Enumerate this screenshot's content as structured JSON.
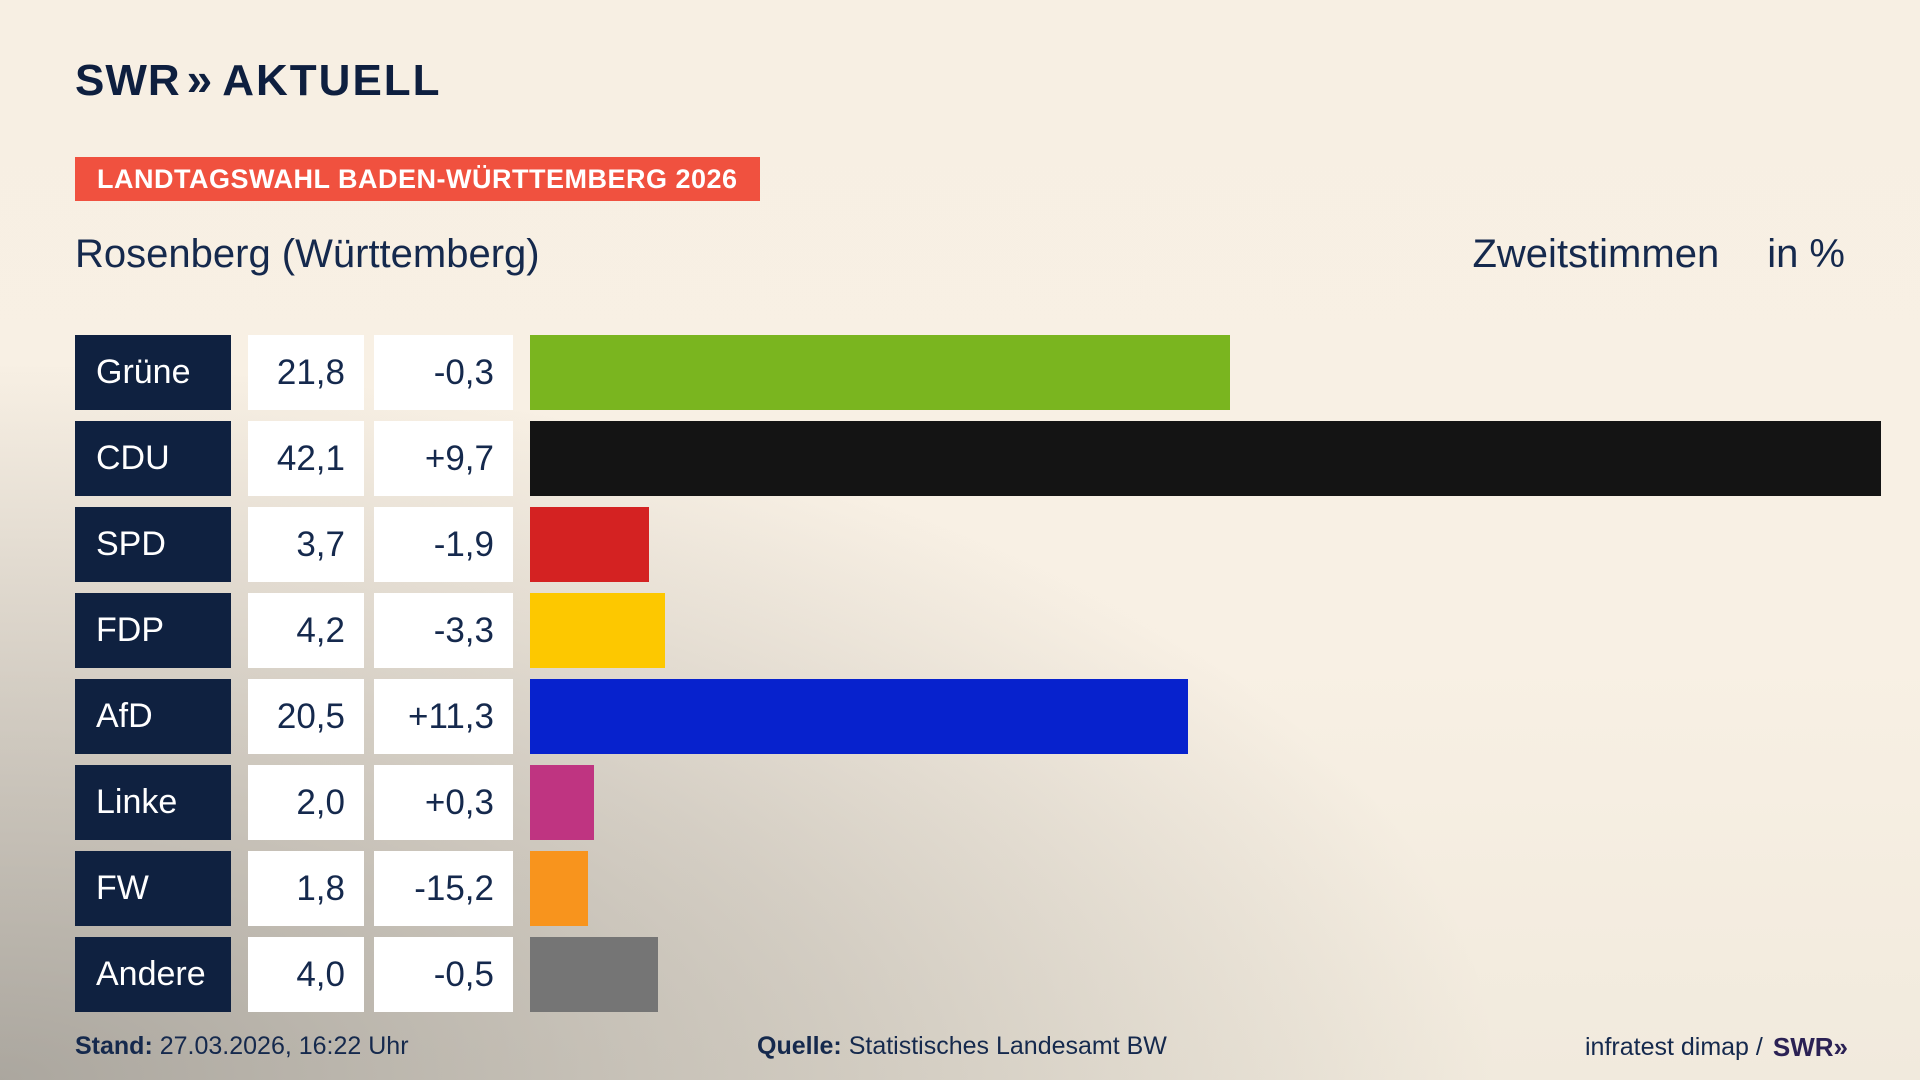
{
  "brand": {
    "swr": "SWR",
    "chevrons": "»",
    "aktuell": "AKTUELL",
    "color": "#0e1f3f"
  },
  "banner": {
    "text": "LANDTAGSWAHL BADEN-WÜRTTEMBERG 2026",
    "bg_color": "#f0513f",
    "text_color": "#ffffff"
  },
  "header": {
    "title": "Rosenberg (Württemberg)",
    "vote_type": "Zweitstimmen",
    "unit": "in %"
  },
  "chart_data": {
    "type": "bar",
    "orientation": "horizontal",
    "title": "Rosenberg (Württemberg)",
    "value_label": "Zweitstimmen",
    "unit": "in %",
    "xlim": [
      0,
      42.1
    ],
    "max_value": 42.1,
    "grid": false,
    "legend": false,
    "categories": [
      "Grüne",
      "CDU",
      "SPD",
      "FDP",
      "AfD",
      "Linke",
      "FW",
      "Andere"
    ],
    "parties": [
      {
        "name": "Grüne",
        "value": 21.8,
        "value_label": "21,8",
        "change_label": "-0,3",
        "color": "#7ab51f"
      },
      {
        "name": "CDU",
        "value": 42.1,
        "value_label": "42,1",
        "change_label": "+9,7",
        "color": "#141414"
      },
      {
        "name": "SPD",
        "value": 3.7,
        "value_label": "3,7",
        "change_label": "-1,9",
        "color": "#d42222"
      },
      {
        "name": "FDP",
        "value": 4.2,
        "value_label": "4,2",
        "change_label": "-3,3",
        "color": "#fdc800"
      },
      {
        "name": "AfD",
        "value": 20.5,
        "value_label": "20,5",
        "change_label": "+11,3",
        "color": "#0722cd"
      },
      {
        "name": "Linke",
        "value": 2.0,
        "value_label": "2,0",
        "change_label": "+0,3",
        "color": "#bf3481"
      },
      {
        "name": "FW",
        "value": 1.8,
        "value_label": "1,8",
        "change_label": "-15,2",
        "color": "#f8941d"
      },
      {
        "name": "Andere",
        "value": 4.0,
        "value_label": "4,0",
        "change_label": "-0,5",
        "color": "#757575"
      }
    ],
    "label_box_color": "#0f2140",
    "value_box_color": "#ffffff"
  },
  "footer": {
    "stand_label": "Stand:",
    "stand_value": "27.03.2026, 16:22 Uhr",
    "quelle_label": "Quelle:",
    "quelle_value": "Statistisches Landesamt BW",
    "credit_text": "infratest dimap /",
    "credit_swr": "SWR",
    "credit_chevrons": "»"
  }
}
